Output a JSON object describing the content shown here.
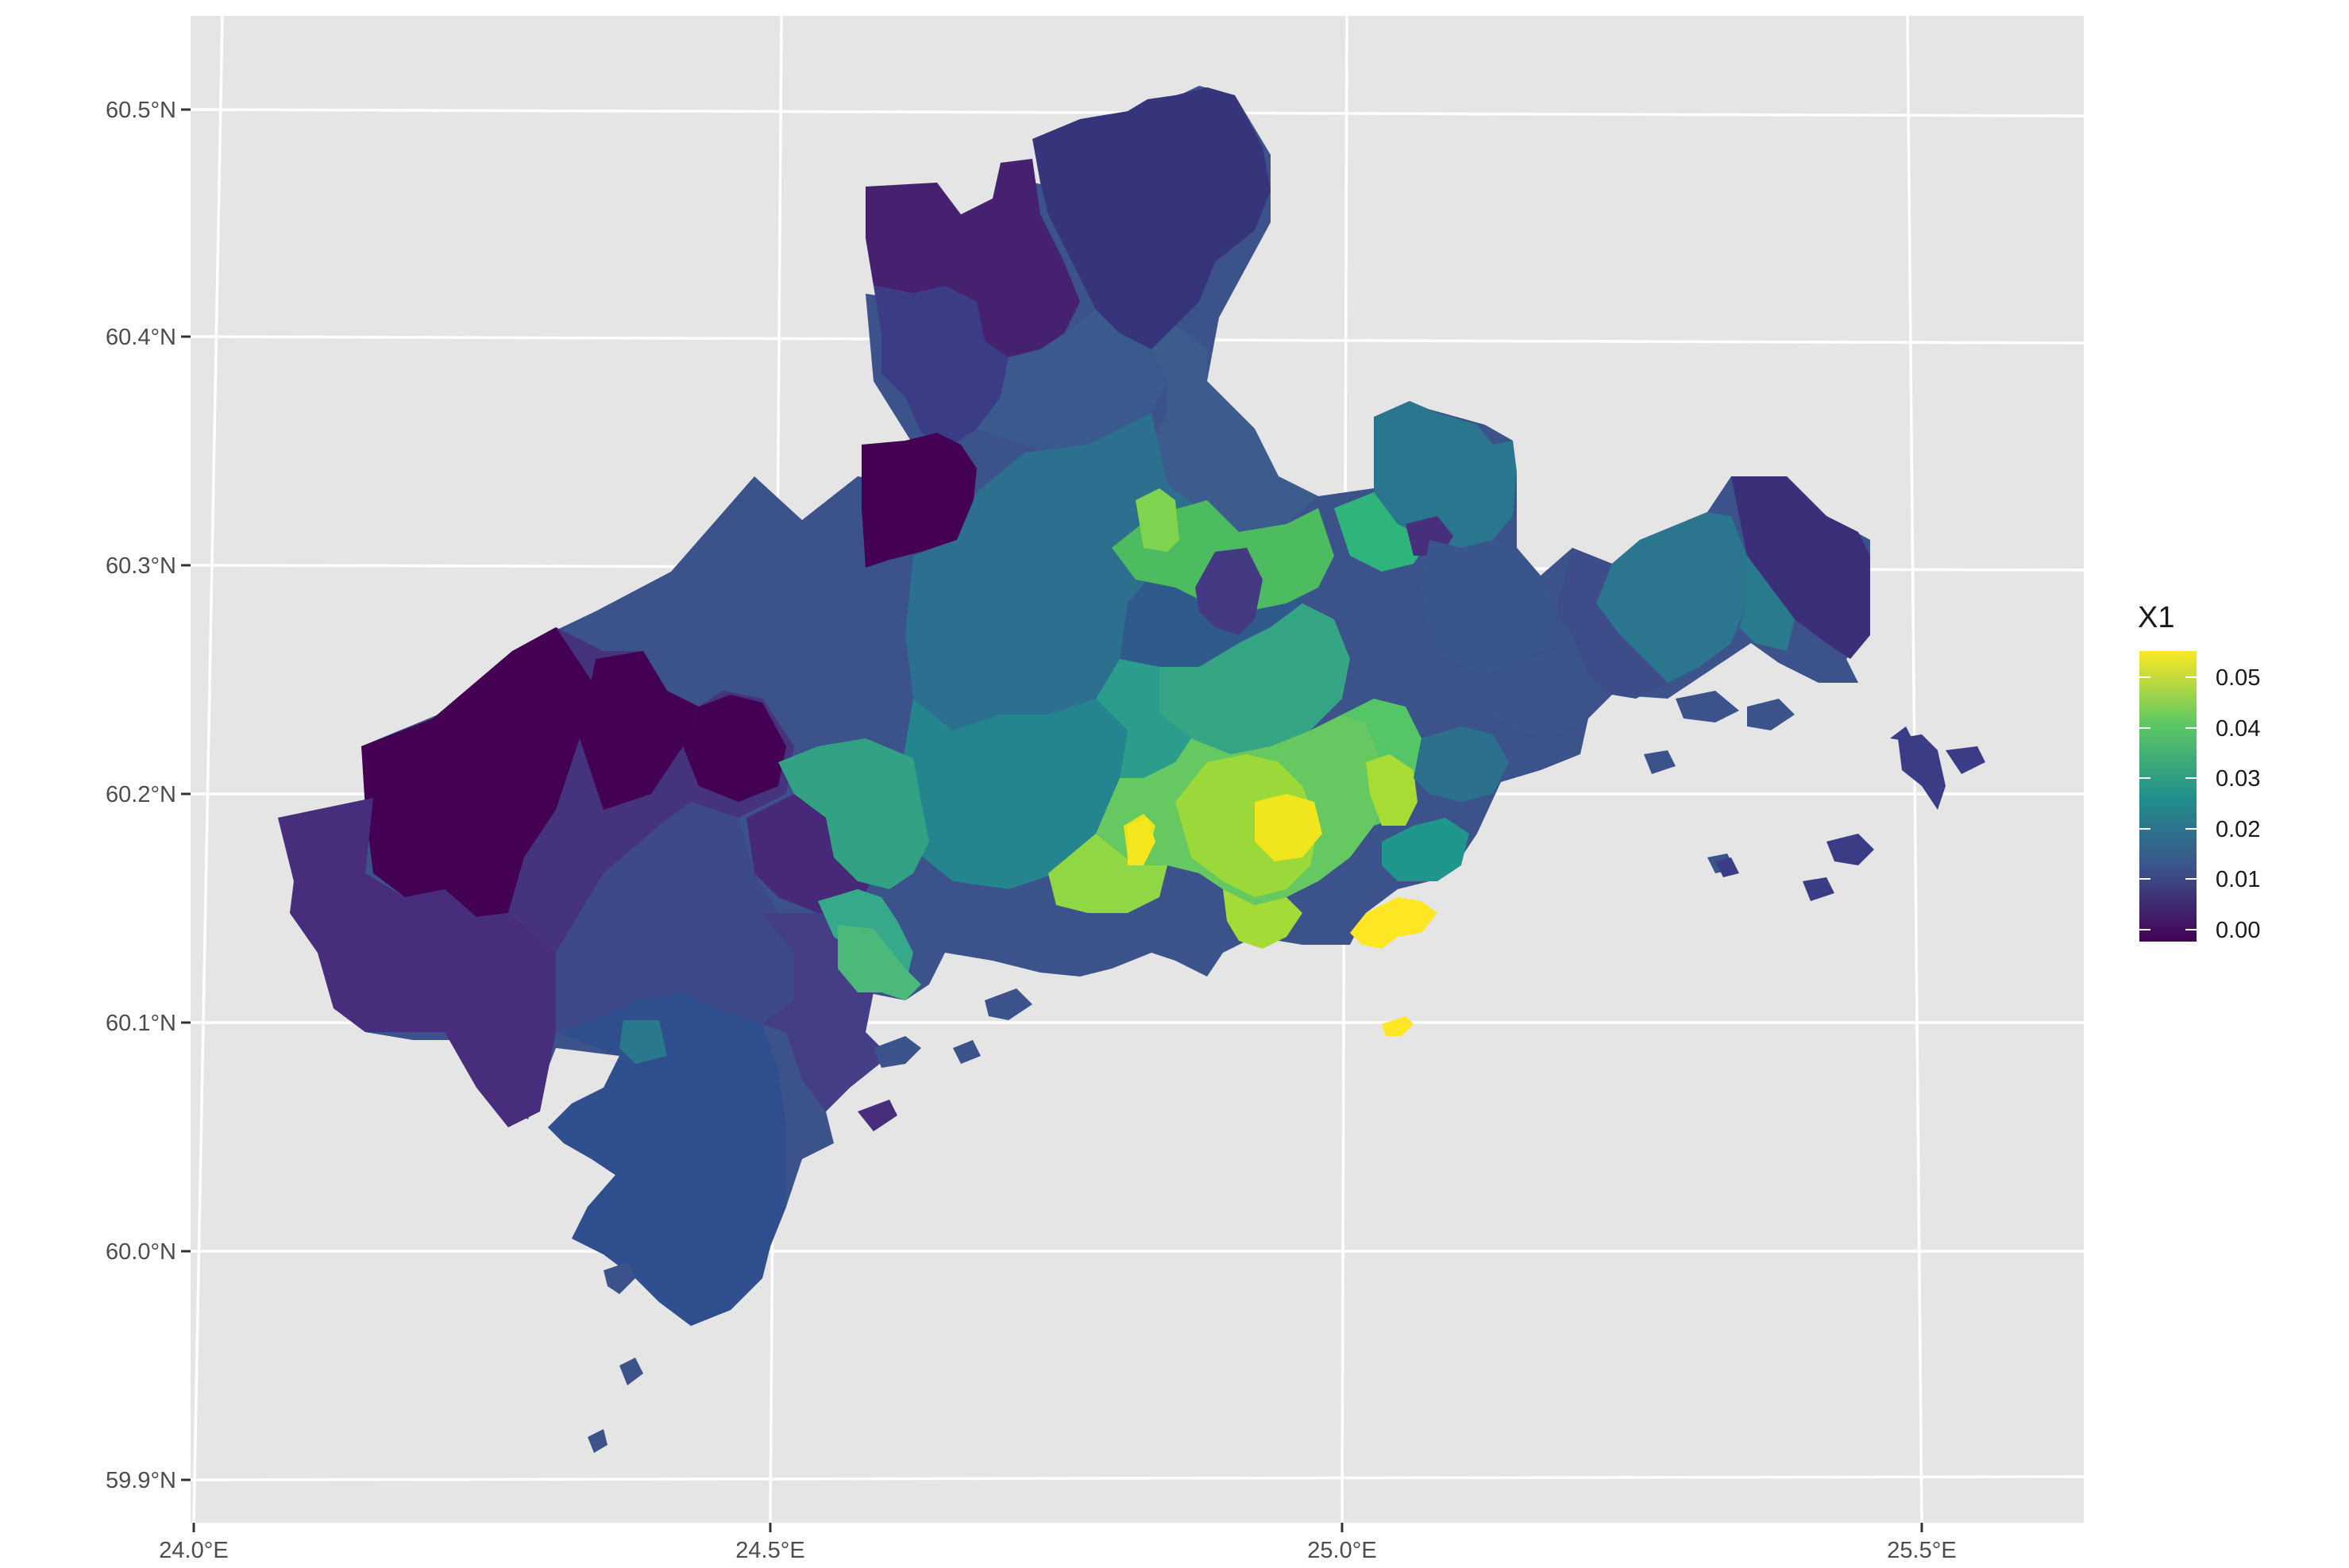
{
  "chart_data": {
    "type": "choropleth",
    "legend": {
      "title": "X1",
      "placement": "right",
      "labels": [
        "0.05",
        "0.04",
        "0.03",
        "0.02",
        "0.01",
        "0.00"
      ],
      "range": [
        0.0,
        0.055
      ]
    },
    "x_axis": {
      "ticks": [
        "24.0°E",
        "24.5°E",
        "25.0°E",
        "25.5°E"
      ],
      "range": [
        23.98,
        25.65
      ]
    },
    "y_axis": {
      "ticks": [
        "60.5°N",
        "60.4°N",
        "60.3°N",
        "60.2°N",
        "60.1°N",
        "60.0°N",
        "59.9°N"
      ],
      "range": [
        59.89,
        60.54
      ]
    },
    "grid": true,
    "colors": {
      "panel": "#e5e5e5",
      "grid": "#ffffff",
      "scale": [
        "#440154",
        "#3b528b",
        "#21908c",
        "#5dc863",
        "#fde725"
      ]
    }
  }
}
